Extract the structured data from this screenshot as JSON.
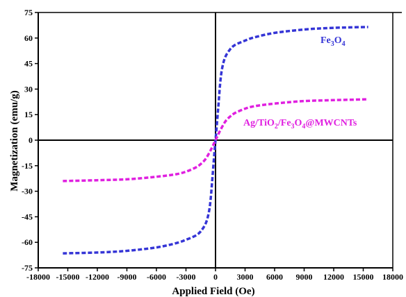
{
  "chart_data": {
    "type": "line",
    "title": "",
    "xlabel": "Applied Field (Oe)",
    "ylabel": "Magnetization (emu/g)",
    "xlim": [
      -18000,
      18000
    ],
    "ylim": [
      -75,
      75
    ],
    "xticks": [
      -18000,
      -15000,
      -12000,
      -9000,
      -6000,
      -3000,
      0,
      3000,
      6000,
      9000,
      12000,
      15000,
      18000
    ],
    "yticks": [
      -75,
      -60,
      -45,
      -30,
      -15,
      0,
      15,
      30,
      45,
      60,
      75
    ],
    "grid": false,
    "legend": "inline labels",
    "series": [
      {
        "name": "Fe3O4",
        "color": "#3535d6",
        "x": [
          -15500,
          -12000,
          -9000,
          -6000,
          -4000,
          -3000,
          -2000,
          -1500,
          -1000,
          -700,
          -500,
          -300,
          -150,
          0,
          150,
          300,
          500,
          700,
          1000,
          1500,
          2000,
          3000,
          4000,
          6000,
          9000,
          12000,
          15500
        ],
        "y": [
          -66.5,
          -66,
          -65,
          -63,
          -60.5,
          -58.5,
          -56,
          -53.5,
          -49,
          -43,
          -35,
          -21,
          -10,
          0,
          10,
          21,
          35,
          43,
          49,
          53.5,
          56,
          58.5,
          60.5,
          63,
          65,
          66,
          66.5
        ]
      },
      {
        "name": "Ag/TiO2/Fe3O4@MWCNTs",
        "color": "#e020e0",
        "x": [
          -15500,
          -12000,
          -9000,
          -6000,
          -4000,
          -3000,
          -2000,
          -1500,
          -1000,
          -500,
          -250,
          0,
          250,
          500,
          1000,
          1500,
          2000,
          3000,
          4000,
          6000,
          9000,
          12000,
          15500
        ],
        "y": [
          -24,
          -23.5,
          -23,
          -21.5,
          -20,
          -18.5,
          -16,
          -14,
          -11,
          -6,
          -3,
          0,
          3,
          6,
          11,
          14,
          16,
          18.5,
          20,
          21.5,
          23,
          23.5,
          24
        ]
      }
    ],
    "annotations": [
      {
        "series": 0,
        "text": "Fe3O4"
      },
      {
        "series": 1,
        "text": "Ag/TiO2/Fe3O4@MWCNTs"
      }
    ]
  }
}
